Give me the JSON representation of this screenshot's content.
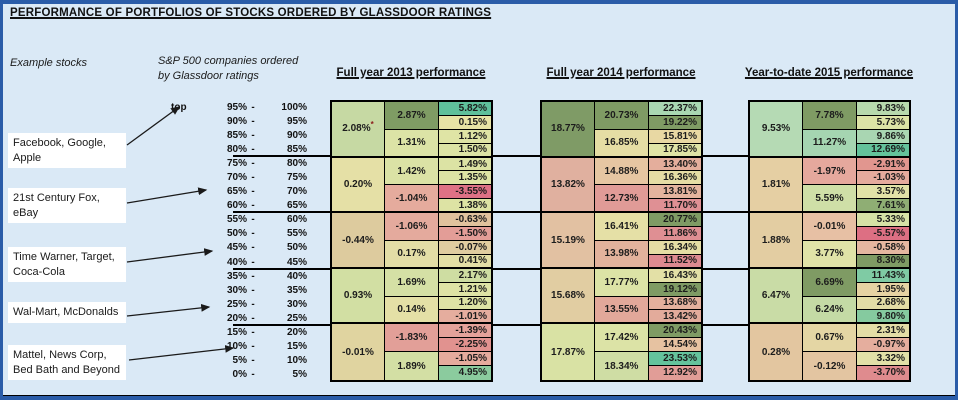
{
  "title": "PERFORMANCE OF PORTFOLIOS OF STOCKS ORDERED BY GLASSDOOR RATINGS",
  "notes": {
    "example_stocks": "Example stocks",
    "sp500_line1": "S&P 500 companies ordered",
    "sp500_line2": "by Glassdoor ratings"
  },
  "stock_labels": [
    "Facebook, Google, Apple",
    "21st Century Fox, eBay",
    "Time Warner, Target, Coca-Cola",
    "Wal-Mart, McDonalds",
    "Mattel, News Corp, Bed Bath and Beyond"
  ],
  "percentiles": [
    {
      "top": "top",
      "from": "95%",
      "to": "100%"
    },
    {
      "top": "",
      "from": "90%",
      "to": "95%"
    },
    {
      "top": "",
      "from": "85%",
      "to": "90%"
    },
    {
      "top": "",
      "from": "80%",
      "to": "85%"
    },
    {
      "top": "",
      "from": "75%",
      "to": "80%"
    },
    {
      "top": "",
      "from": "70%",
      "to": "75%"
    },
    {
      "top": "",
      "from": "65%",
      "to": "70%"
    },
    {
      "top": "",
      "from": "60%",
      "to": "65%"
    },
    {
      "top": "",
      "from": "55%",
      "to": "60%"
    },
    {
      "top": "",
      "from": "50%",
      "to": "55%"
    },
    {
      "top": "",
      "from": "45%",
      "to": "50%"
    },
    {
      "top": "",
      "from": "40%",
      "to": "45%"
    },
    {
      "top": "",
      "from": "35%",
      "to": "40%"
    },
    {
      "top": "",
      "from": "30%",
      "to": "35%"
    },
    {
      "top": "",
      "from": "25%",
      "to": "30%"
    },
    {
      "top": "",
      "from": "20%",
      "to": "25%"
    },
    {
      "top": "",
      "from": "15%",
      "to": "20%"
    },
    {
      "top": "",
      "from": "10%",
      "to": "15%"
    },
    {
      "top": "",
      "from": "5%",
      "to": "10%"
    },
    {
      "top": "",
      "from": "0%",
      "to": "5%"
    }
  ],
  "sections": [
    {
      "title": "Full year 2013 performance",
      "quintile": [
        {
          "v": "2.08%",
          "c": "#c6d9a3",
          "note": "*"
        },
        {
          "v": "0.20%",
          "c": "#e5e0a6"
        },
        {
          "v": "-0.44%",
          "c": "#ddcb9e"
        },
        {
          "v": "0.93%",
          "c": "#d2dfa3"
        },
        {
          "v": "-0.01%",
          "c": "#e0d4a0"
        }
      ],
      "decile": [
        {
          "v": "2.87%",
          "c": "#7f9c64"
        },
        {
          "v": "1.31%",
          "c": "#dce3a6"
        },
        {
          "v": "1.42%",
          "c": "#dbe2a5"
        },
        {
          "v": "-1.04%",
          "c": "#e5ab9d"
        },
        {
          "v": "-1.06%",
          "c": "#e4aa9d"
        },
        {
          "v": "0.17%",
          "c": "#e3dda6"
        },
        {
          "v": "1.69%",
          "c": "#d5e0a5"
        },
        {
          "v": "0.14%",
          "c": "#e4e0a6"
        },
        {
          "v": "-1.83%",
          "c": "#e29f98"
        },
        {
          "v": "1.89%",
          "c": "#d3dfa4"
        }
      ],
      "ventile": [
        {
          "v": "5.82%",
          "c": "#5fc09b"
        },
        {
          "v": "0.15%",
          "c": "#e7e3a5"
        },
        {
          "v": "1.12%",
          "c": "#dfe4a5"
        },
        {
          "v": "1.50%",
          "c": "#dce3a4"
        },
        {
          "v": "1.49%",
          "c": "#dce3a4"
        },
        {
          "v": "1.35%",
          "c": "#dde3a4"
        },
        {
          "v": "-3.55%",
          "c": "#de7185"
        },
        {
          "v": "1.38%",
          "c": "#dde3a4"
        },
        {
          "v": "-0.63%",
          "c": "#e0c29d"
        },
        {
          "v": "-1.50%",
          "c": "#e39d97"
        },
        {
          "v": "-0.07%",
          "c": "#e0cda0"
        },
        {
          "v": "0.41%",
          "c": "#e3dfa5"
        },
        {
          "v": "2.17%",
          "c": "#cedda2"
        },
        {
          "v": "1.21%",
          "c": "#dee3a5"
        },
        {
          "v": "1.20%",
          "c": "#dee3a5"
        },
        {
          "v": "-1.01%",
          "c": "#e5ad9e"
        },
        {
          "v": "-1.39%",
          "c": "#e4a29a"
        },
        {
          "v": "-2.25%",
          "c": "#e1928f"
        },
        {
          "v": "-1.05%",
          "c": "#e5ab9d"
        },
        {
          "v": "4.95%",
          "c": "#8bcb9e"
        }
      ]
    },
    {
      "title": "Full year 2014 performance",
      "quintile": [
        {
          "v": "18.77%",
          "c": "#7f9b66"
        },
        {
          "v": "13.82%",
          "c": "#e0b09f"
        },
        {
          "v": "15.19%",
          "c": "#e2c1a2"
        },
        {
          "v": "15.68%",
          "c": "#e1cda2"
        },
        {
          "v": "17.87%",
          "c": "#d9e2a4"
        }
      ],
      "decile": [
        {
          "v": "20.73%",
          "c": "#7f9b64"
        },
        {
          "v": "16.85%",
          "c": "#e5dda4"
        },
        {
          "v": "14.88%",
          "c": "#e6c6a2"
        },
        {
          "v": "12.73%",
          "c": "#e09b97"
        },
        {
          "v": "16.41%",
          "c": "#e5e0a6"
        },
        {
          "v": "13.98%",
          "c": "#e2b29c"
        },
        {
          "v": "17.77%",
          "c": "#dce3a6"
        },
        {
          "v": "13.55%",
          "c": "#e2a89a"
        },
        {
          "v": "17.42%",
          "c": "#dce3a6"
        },
        {
          "v": "18.34%",
          "c": "#cfdda4"
        }
      ],
      "ventile": [
        {
          "v": "22.37%",
          "c": "#a9d7b2"
        },
        {
          "v": "19.22%",
          "c": "#7f9b64"
        },
        {
          "v": "15.81%",
          "c": "#e8d8a3"
        },
        {
          "v": "17.85%",
          "c": "#dfe4a6"
        },
        {
          "v": "13.40%",
          "c": "#e4ae9c"
        },
        {
          "v": "16.36%",
          "c": "#e5dda4"
        },
        {
          "v": "13.81%",
          "c": "#e4b49e"
        },
        {
          "v": "11.70%",
          "c": "#df9094"
        },
        {
          "v": "20.77%",
          "c": "#7f9b64"
        },
        {
          "v": "11.86%",
          "c": "#df8f93"
        },
        {
          "v": "16.34%",
          "c": "#e5dda4"
        },
        {
          "v": "11.52%",
          "c": "#de8a90"
        },
        {
          "v": "16.43%",
          "c": "#e3e0a6"
        },
        {
          "v": "19.12%",
          "c": "#7f9b64"
        },
        {
          "v": "13.68%",
          "c": "#e4b19d"
        },
        {
          "v": "13.42%",
          "c": "#e3ab9b"
        },
        {
          "v": "20.43%",
          "c": "#7f9b64"
        },
        {
          "v": "14.54%",
          "c": "#e6c2a1"
        },
        {
          "v": "23.53%",
          "c": "#64c39c"
        },
        {
          "v": "12.92%",
          "c": "#e19d97"
        }
      ]
    },
    {
      "title": "Year-to-date 2015 performance",
      "quintile": [
        {
          "v": "9.53%",
          "c": "#b5dab4"
        },
        {
          "v": "1.81%",
          "c": "#e5cfa3"
        },
        {
          "v": "1.88%",
          "c": "#e3cda2"
        },
        {
          "v": "6.47%",
          "c": "#c9dca6"
        },
        {
          "v": "0.28%",
          "c": "#e3c6a0"
        }
      ],
      "decile": [
        {
          "v": "7.78%",
          "c": "#7f9b64"
        },
        {
          "v": "11.27%",
          "c": "#a5d5b1"
        },
        {
          "v": "-1.97%",
          "c": "#e5a89d"
        },
        {
          "v": "5.59%",
          "c": "#cfdfa7"
        },
        {
          "v": "-0.01%",
          "c": "#e7c0a4"
        },
        {
          "v": "3.77%",
          "c": "#e0e3a7"
        },
        {
          "v": "6.69%",
          "c": "#7f9b64"
        },
        {
          "v": "6.24%",
          "c": "#c4daa5"
        },
        {
          "v": "0.67%",
          "c": "#e4d6a4"
        },
        {
          "v": "-0.12%",
          "c": "#e3c5a1"
        }
      ],
      "ventile": [
        {
          "v": "9.83%",
          "c": "#b7d9ad"
        },
        {
          "v": "5.73%",
          "c": "#dce3a6"
        },
        {
          "v": "9.86%",
          "c": "#a9d6b2"
        },
        {
          "v": "12.69%",
          "c": "#63c29b"
        },
        {
          "v": "-2.91%",
          "c": "#e1968f"
        },
        {
          "v": "-1.03%",
          "c": "#e5ab9d"
        },
        {
          "v": "3.57%",
          "c": "#e2e2a7"
        },
        {
          "v": "7.61%",
          "c": "#8fae74"
        },
        {
          "v": "5.33%",
          "c": "#d6e1a6"
        },
        {
          "v": "-5.57%",
          "c": "#dd6f83"
        },
        {
          "v": "-0.58%",
          "c": "#e5b7a0"
        },
        {
          "v": "8.30%",
          "c": "#7f9b64"
        },
        {
          "v": "11.43%",
          "c": "#7fcba4"
        },
        {
          "v": "1.95%",
          "c": "#e6d3a3"
        },
        {
          "v": "2.68%",
          "c": "#e3dda6"
        },
        {
          "v": "9.80%",
          "c": "#85ca9f"
        },
        {
          "v": "2.31%",
          "c": "#e3dda6"
        },
        {
          "v": "-0.97%",
          "c": "#e5ae9e"
        },
        {
          "v": "3.32%",
          "c": "#e2e0a7"
        },
        {
          "v": "-3.70%",
          "c": "#df8b8e"
        }
      ]
    }
  ],
  "chart_data": {
    "type": "heatmap",
    "title": "PERFORMANCE OF PORTFOLIOS OF STOCKS ORDERED BY GLASSDOOR RATINGS",
    "row_bins_glassdoor_percentile": [
      "95%-100%",
      "90%-95%",
      "85%-90%",
      "80%-85%",
      "75%-80%",
      "70%-75%",
      "65%-70%",
      "60%-65%",
      "55%-60%",
      "50%-55%",
      "45%-50%",
      "40%-45%",
      "35%-40%",
      "30%-35%",
      "25%-30%",
      "20%-25%",
      "15%-20%",
      "10%-15%",
      "5%-10%",
      "0%-5%"
    ],
    "granularities": [
      "quintile (merged 4 bins)",
      "decile (merged 2 bins)",
      "ventile (single 5% bin)"
    ],
    "years": [
      {
        "label": "Full year 2013 performance",
        "quintile_pct": [
          2.08,
          0.2,
          -0.44,
          0.93,
          -0.01
        ],
        "decile_pct": [
          2.87,
          1.31,
          1.42,
          -1.04,
          -1.06,
          0.17,
          1.69,
          0.14,
          -1.83,
          1.89
        ],
        "ventile_pct": [
          5.82,
          0.15,
          1.12,
          1.5,
          1.49,
          1.35,
          -3.55,
          1.38,
          -0.63,
          -1.5,
          -0.07,
          0.41,
          2.17,
          1.21,
          1.2,
          -1.01,
          -1.39,
          -2.25,
          -1.05,
          4.95
        ]
      },
      {
        "label": "Full year 2014 performance",
        "quintile_pct": [
          18.77,
          13.82,
          15.19,
          15.68,
          17.87
        ],
        "decile_pct": [
          20.73,
          16.85,
          14.88,
          12.73,
          16.41,
          13.98,
          17.77,
          13.55,
          17.42,
          18.34
        ],
        "ventile_pct": [
          22.37,
          19.22,
          15.81,
          17.85,
          13.4,
          16.36,
          13.81,
          11.7,
          20.77,
          11.86,
          16.34,
          11.52,
          16.43,
          19.12,
          13.68,
          13.42,
          20.43,
          14.54,
          23.53,
          12.92
        ]
      },
      {
        "label": "Year-to-date 2015 performance",
        "quintile_pct": [
          9.53,
          1.81,
          1.88,
          6.47,
          0.28
        ],
        "decile_pct": [
          7.78,
          11.27,
          -1.97,
          5.59,
          -0.01,
          3.77,
          6.69,
          6.24,
          0.67,
          -0.12
        ],
        "ventile_pct": [
          9.83,
          5.73,
          9.86,
          12.69,
          -2.91,
          -1.03,
          3.57,
          7.61,
          5.33,
          -5.57,
          -0.58,
          8.3,
          11.43,
          1.95,
          2.68,
          9.8,
          2.31,
          -0.97,
          3.32,
          -3.7
        ]
      }
    ],
    "example_stock_annotations": [
      {
        "stocks": "Facebook, Google, Apple",
        "bin": "95%-100%"
      },
      {
        "stocks": "21st Century Fox, eBay",
        "bin": "65%-70%"
      },
      {
        "stocks": "Time Warner, Target, Coca-Cola",
        "bin": "40%-45%"
      },
      {
        "stocks": "Wal-Mart, McDonalds",
        "bin": "20%-25%"
      },
      {
        "stocks": "Mattel, News Corp, Bed Bath and Beyond",
        "bin": "5%-10%"
      }
    ],
    "legend_position": "none",
    "grid": true,
    "colors": {
      "high": "#63c29b",
      "mid": "#e5e0a6",
      "low": "#dd6f83",
      "background": "#dae9f6",
      "frame": "#2a5ca8"
    }
  }
}
